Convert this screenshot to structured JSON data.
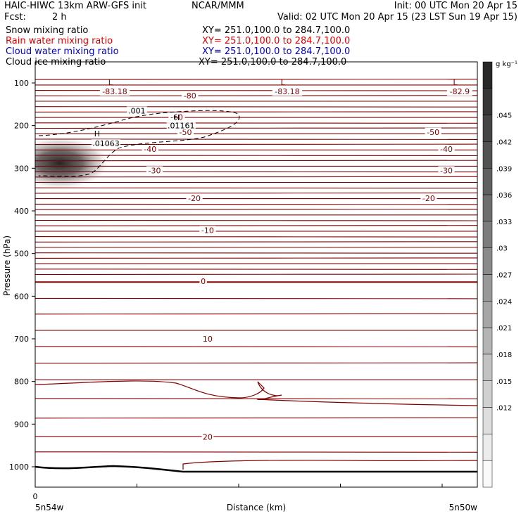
{
  "header": {
    "title": "HAIC-HIWC 13km ARW-GFS init",
    "org": "NCAR/MMM",
    "init": "Init: 00 UTC Mon 20 Apr 15",
    "fcst_label": "Fcst:",
    "fcst_value": "2 h",
    "valid": "Valid: 02 UTC Mon 20 Apr 15 (23 LST Sun 19 Apr 15)"
  },
  "legend": [
    {
      "name": "Snow mixing ratio",
      "xy": "XY= 251.0,100.0 to 284.7,100.0",
      "color": "#000000"
    },
    {
      "name": "Rain water mixing ratio",
      "xy": "XY= 251.0,100.0 to 284.7,100.0",
      "color": "#e00000"
    },
    {
      "name": "Cloud water mixing ratio",
      "xy": "XY= 251.0,100.0 to 284.7,100.0",
      "color": "#0000c8"
    },
    {
      "name": "Cloud ice mixing ratio",
      "xy": "XY= 251.0,100.0 to 284.7,100.0",
      "color": "#000000"
    }
  ],
  "colors": {
    "temperature": "#800000",
    "mixing_ratio": "#000000",
    "terrain": "#000000"
  },
  "chart_data": {
    "type": "contour",
    "ylabel": "Pressure (hPa)",
    "xlabel": "Distance (km)",
    "x_start_label": "5n54w",
    "x_end_label": "5n50w",
    "x_zero_label": "0",
    "yticks": [
      "100",
      "200",
      "300",
      "400",
      "500",
      "600",
      "700",
      "800",
      "900",
      "1000"
    ],
    "colorbar": {
      "unit": "g kg⁻¹",
      "labels": [
        ".045",
        ".042",
        ".039",
        ".036",
        ".033",
        ".03",
        ".027",
        ".024",
        ".021",
        ".018",
        ".015",
        ".012"
      ]
    },
    "temperature_contour_labels": [
      {
        "text": "-83.18",
        "p": 120,
        "x": 0.18
      },
      {
        "text": "-83.18",
        "p": 120,
        "x": 0.57
      },
      {
        "text": "-82.9",
        "p": 120,
        "x": 0.96
      },
      {
        "text": "-80",
        "p": 130,
        "x": 0.35
      },
      {
        "text": "-60",
        "p": 180,
        "x": 0.32
      },
      {
        "text": "-50",
        "p": 215,
        "x": 0.34
      },
      {
        "text": "-50",
        "p": 215,
        "x": 0.9
      },
      {
        "text": "-40",
        "p": 255,
        "x": 0.26
      },
      {
        "text": "-40",
        "p": 255,
        "x": 0.93
      },
      {
        "text": "-30",
        "p": 305,
        "x": 0.27
      },
      {
        "text": "-30",
        "p": 305,
        "x": 0.93
      },
      {
        "text": "-20",
        "p": 370,
        "x": 0.36
      },
      {
        "text": "-20",
        "p": 370,
        "x": 0.89
      },
      {
        "text": "-10",
        "p": 445,
        "x": 0.39
      },
      {
        "text": "0",
        "p": 565,
        "x": 0.38
      },
      {
        "text": "10",
        "p": 700,
        "x": 0.39
      },
      {
        "text": "20",
        "p": 930,
        "x": 0.39
      }
    ],
    "extrema": [
      {
        "type": "L",
        "p": 105,
        "x": 0.17
      },
      {
        "type": "L",
        "p": 105,
        "x": 0.56
      },
      {
        "type": "L",
        "p": 105,
        "x": 0.95
      },
      {
        "type": "H",
        "p": 187,
        "x": 0.32
      },
      {
        "type": "H",
        "p": 225,
        "x": 0.14
      }
    ],
    "mixing_ratio_labels": [
      {
        "text": ".001",
        "p": 165,
        "x": 0.23
      },
      {
        "text": ".01161",
        "p": 200,
        "x": 0.33
      },
      {
        "text": ".01063",
        "p": 242,
        "x": 0.16
      }
    ]
  }
}
